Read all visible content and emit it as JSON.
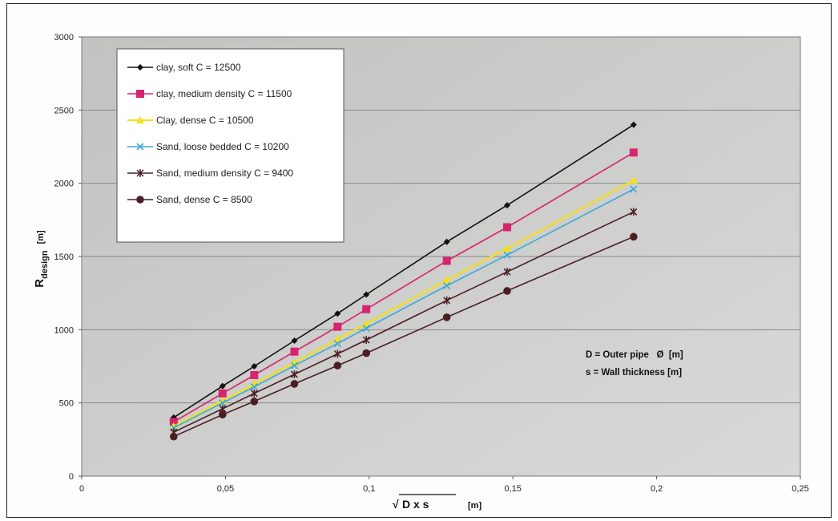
{
  "chart_data": {
    "type": "line",
    "title": "",
    "xlabel": {
      "text": "D x s",
      "unit": "[m]",
      "radical": "√"
    },
    "ylabel": {
      "main": "R",
      "sub": "design",
      "unit": "[m]"
    },
    "xlim": [
      0,
      0.25
    ],
    "ylim": [
      0,
      3000
    ],
    "x_ticks": [
      0,
      0.05,
      0.1,
      0.15,
      0.2,
      0.25
    ],
    "x_tick_labels": [
      "0",
      "0,05",
      "0,1",
      "0,15",
      "0,2",
      "0,25"
    ],
    "y_ticks": [
      0,
      500,
      1000,
      1500,
      2000,
      2500,
      3000
    ],
    "y_tick_labels": [
      "0",
      "500",
      "1000",
      "1500",
      "2000",
      "2500",
      "3000"
    ],
    "grid": {
      "horizontal": true,
      "vertical": false
    },
    "legend_position": "top-left",
    "x": [
      0.032,
      0.049,
      0.06,
      0.074,
      0.089,
      0.099,
      0.127,
      0.148,
      0.192
    ],
    "series": [
      {
        "name": "clay, soft C = 12500",
        "color": "#111111",
        "marker": "diamond",
        "values": [
          400,
          615,
          750,
          925,
          1110,
          1240,
          1600,
          1850,
          2400
        ]
      },
      {
        "name": "clay, medium density C = 11500",
        "color": "#d6246e",
        "marker": "square",
        "values": [
          370,
          565,
          690,
          850,
          1020,
          1140,
          1470,
          1700,
          2210
        ]
      },
      {
        "name": "Clay, dense C = 10500",
        "color": "#f2e01a",
        "marker": "triangle",
        "values": [
          340,
          515,
          630,
          775,
          935,
          1040,
          1340,
          1555,
          2020
        ]
      },
      {
        "name": "Sand, loose bedded C = 10200",
        "color": "#3fa9d6",
        "marker": "x",
        "values": [
          330,
          500,
          610,
          755,
          905,
          1010,
          1300,
          1510,
          1960
        ]
      },
      {
        "name": "Sand, medium density C = 9400",
        "color": "#4a1f24",
        "marker": "star",
        "values": [
          300,
          460,
          565,
          695,
          835,
          930,
          1200,
          1395,
          1805
        ]
      },
      {
        "name": "Sand, dense C = 8500",
        "color": "#4a1f24",
        "marker": "circle",
        "values": [
          270,
          420,
          510,
          630,
          755,
          840,
          1085,
          1265,
          1635
        ]
      }
    ],
    "annotations": [
      "D = Outer pipe   Ø  [m]",
      "s = Wall thickness [m]"
    ]
  }
}
